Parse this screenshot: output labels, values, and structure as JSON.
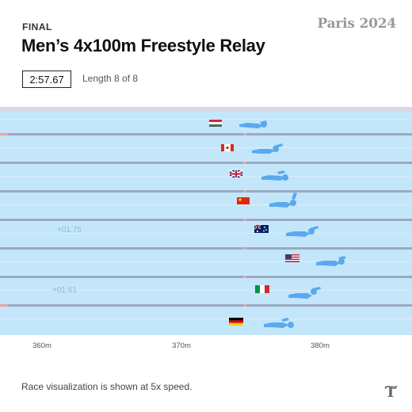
{
  "header": {
    "eyebrow": "FINAL",
    "brand": "Paris 2024",
    "title": "Men’s 4x100m Freestyle Relay"
  },
  "status": {
    "timer": "2:57.67",
    "length_text": "Length 8 of 8"
  },
  "pool": {
    "water_color": "#c4e6fb",
    "lane_line_color": "#9aaac3",
    "deck_color": "#d8d7e2",
    "swimmer_color": "#5aa9ef",
    "marker_color": "#f3a0a0",
    "lanes": [
      {
        "flag": "hungary-flag",
        "time_gap": ""
      },
      {
        "flag": "canada-flag",
        "time_gap": ""
      },
      {
        "flag": "great-britain-flag",
        "time_gap": ""
      },
      {
        "flag": "china-flag",
        "time_gap": ""
      },
      {
        "flag": "australia-flag",
        "time_gap": "+01.75"
      },
      {
        "flag": "usa-flag",
        "time_gap": ""
      },
      {
        "flag": "italy-flag",
        "time_gap": "+01.61"
      },
      {
        "flag": "germany-flag",
        "time_gap": ""
      }
    ],
    "axis_labels": [
      "360m",
      "370m",
      "380m"
    ]
  },
  "footer": {
    "note": "Race visualization is shown at 5x speed.",
    "logo": "nyt-logo-icon"
  }
}
